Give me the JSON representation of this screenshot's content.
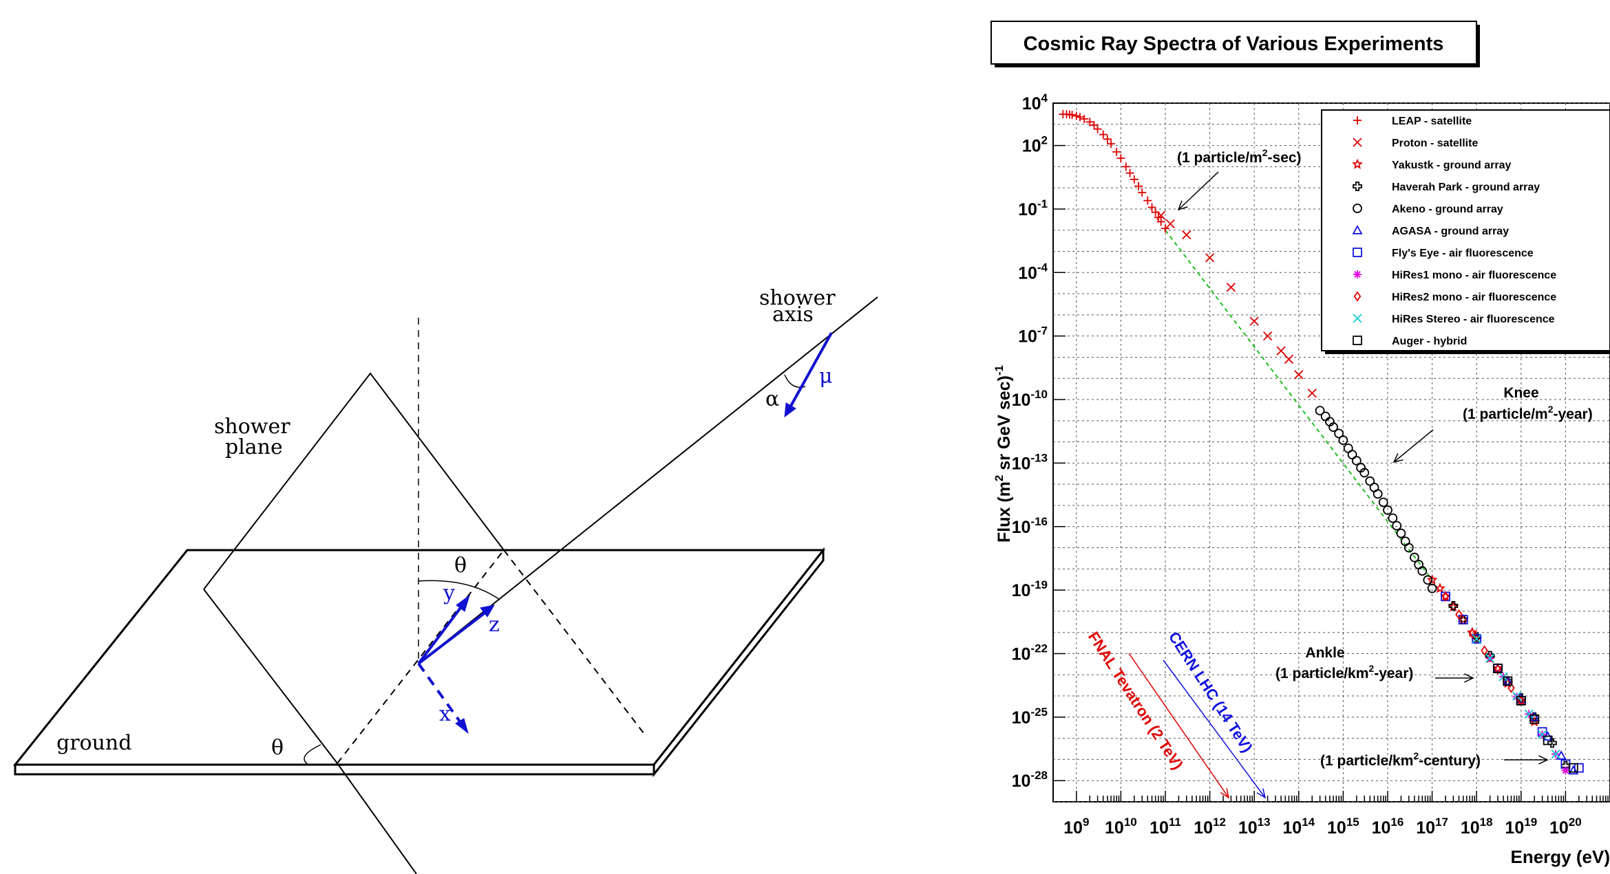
{
  "diagram": {
    "labels": {
      "shower_axis_1": "shower",
      "shower_axis_2": "axis",
      "shower_plane_1": "shower",
      "shower_plane_2": "plane",
      "ground": "ground",
      "theta_top": "θ",
      "theta_bottom": "θ",
      "alpha": "α",
      "mu": "μ",
      "x": "x",
      "y": "y",
      "z": "z"
    },
    "colors": {
      "vector": "#1010d0",
      "line": "#000000"
    }
  },
  "chart_data": {
    "type": "scatter",
    "title": "Cosmic Ray Spectra of Various Experiments",
    "xlabel": "Energy (eV)",
    "ylabel": "Flux (m² sr GeV sec)⁻¹",
    "xscale": "log",
    "yscale": "log",
    "xlim": [
      300000000.0,
      1e+21
    ],
    "ylim": [
      1e-29,
      10000.0
    ],
    "grid": true,
    "legend_position": "top-right",
    "x_ticks": [
      {
        "base": "10",
        "exp": "9"
      },
      {
        "base": "10",
        "exp": "10"
      },
      {
        "base": "10",
        "exp": "11"
      },
      {
        "base": "10",
        "exp": "12"
      },
      {
        "base": "10",
        "exp": "13"
      },
      {
        "base": "10",
        "exp": "14"
      },
      {
        "base": "10",
        "exp": "15"
      },
      {
        "base": "10",
        "exp": "16"
      },
      {
        "base": "10",
        "exp": "17"
      },
      {
        "base": "10",
        "exp": "18"
      },
      {
        "base": "10",
        "exp": "19"
      },
      {
        "base": "10",
        "exp": "20"
      }
    ],
    "y_ticks": [
      {
        "base": "10",
        "exp": "4"
      },
      {
        "base": "10",
        "exp": "2"
      },
      {
        "base": "10",
        "exp": "-1"
      },
      {
        "base": "10",
        "exp": "-4"
      },
      {
        "base": "10",
        "exp": "-7"
      },
      {
        "base": "10",
        "exp": "-10"
      },
      {
        "base": "10",
        "exp": "-13"
      },
      {
        "base": "10",
        "exp": "-16"
      },
      {
        "base": "10",
        "exp": "-19"
      },
      {
        "base": "10",
        "exp": "-22"
      },
      {
        "base": "10",
        "exp": "-25"
      },
      {
        "base": "10",
        "exp": "-28"
      }
    ],
    "series": [
      {
        "name": "LEAP - satellite",
        "marker": "plus",
        "color": "#e00000",
        "x": [
          500000000.0,
          600000000.0,
          700000000.0,
          800000000.0,
          1000000000.0,
          1200000000.0,
          1500000000.0,
          2000000000.0,
          2500000000.0,
          3000000000.0,
          4000000000.0,
          5000000000.0,
          6000000000.0,
          8000000000.0,
          10000000000.0,
          13000000000.0,
          16000000000.0,
          20000000000.0,
          25000000000.0,
          30000000000.0,
          40000000000.0,
          50000000000.0,
          60000000000.0,
          70000000000.0,
          80000000000.0,
          100000000000.0
        ],
        "y": [
          3000,
          3000,
          2900,
          2800,
          2500,
          2200,
          1800,
          1300,
          900,
          600,
          330,
          200,
          120,
          50,
          25,
          10,
          5,
          2.5,
          1.2,
          0.6,
          0.25,
          0.12,
          0.07,
          0.04,
          0.025,
          0.012
        ]
      },
      {
        "name": "Proton - satellite",
        "marker": "x",
        "color": "#e00000",
        "x": [
          80000000000.0,
          130000000000.0,
          300000000000.0,
          1000000000000.0,
          3000000000000.0,
          10000000000000.0,
          20000000000000.0,
          40000000000000.0,
          60000000000000.0,
          100000000000000.0,
          200000000000000.0
        ],
        "y": [
          0.05,
          0.02,
          0.006,
          0.0005,
          2e-05,
          5e-07,
          1e-07,
          2e-08,
          8e-09,
          1.5e-09,
          2e-10
        ]
      },
      {
        "name": "Yakustk - ground array",
        "marker": "star",
        "color": "#e00000",
        "x": [
          1e+17,
          1.5e+17,
          2e+17,
          3e+17,
          5e+17,
          8e+17,
          1e+18,
          2e+18,
          3e+18,
          5e+18,
          1e+19,
          2e+19
        ],
        "y": [
          3e-19,
          1.2e-19,
          5e-20,
          1.6e-20,
          4e-21,
          1e-21,
          5e-22,
          6e-23,
          2e-23,
          4e-24,
          6e-25,
          6e-26
        ]
      },
      {
        "name": "Haverah Park - ground array",
        "marker": "openplus",
        "color": "#000000",
        "x": [
          3e+17,
          5e+17,
          1e+18,
          2e+18,
          5e+18,
          1e+19,
          2e+19,
          5e+19,
          1e+20
        ],
        "y": [
          1.8e-20,
          4e-21,
          6e-22,
          8e-23,
          5e-24,
          8e-25,
          1e-25,
          6e-27,
          5e-28
        ]
      },
      {
        "name": "Akeno - ground array",
        "marker": "circle",
        "color": "#000000",
        "x": [
          300000000000000.0,
          400000000000000.0,
          500000000000000.0,
          600000000000000.0,
          800000000000000.0,
          1000000000000000.0,
          1300000000000000.0,
          1600000000000000.0,
          2000000000000000.0,
          2500000000000000.0,
          3000000000000000.0,
          4000000000000000.0,
          5000000000000000.0,
          6000000000000000.0,
          8000000000000000.0,
          1e+16,
          1.3e+16,
          1.6e+16,
          2e+16,
          2.5e+16,
          3e+16,
          4e+16,
          5e+16,
          6e+16,
          8e+16,
          1e+17
        ],
        "y": [
          3e-11,
          1.6e-11,
          9e-12,
          5e-12,
          2.5e-12,
          1.2e-12,
          5e-13,
          2.5e-13,
          1.3e-13,
          6e-14,
          3.5e-14,
          1.4e-14,
          7e-15,
          3.5e-15,
          1.4e-15,
          6e-16,
          2.5e-16,
          1.1e-16,
          4.8e-17,
          2e-17,
          1e-17,
          3.5e-18,
          1.6e-18,
          8e-19,
          3e-19,
          1.2e-19
        ]
      },
      {
        "name": "AGASA - ground array",
        "marker": "triangle",
        "color": "#1010e0",
        "x": [
          3e+18,
          5e+18,
          1e+19,
          2e+19,
          4e+19,
          8e+19,
          1.5e+20
        ],
        "y": [
          2e-23,
          5e-24,
          7e-25,
          1e-25,
          1.2e-26,
          1.5e-27,
          3e-28
        ]
      },
      {
        "name": "Fly's Eye - air fluorescence",
        "marker": "square",
        "color": "#1010e0",
        "x": [
          2e+17,
          5e+17,
          1e+18,
          3e+18,
          1e+19,
          3e+19,
          1e+20,
          2e+20
        ],
        "y": [
          5e-20,
          4e-21,
          5e-22,
          2e-23,
          6e-25,
          2e-26,
          6e-28,
          4e-28
        ]
      },
      {
        "name": "HiRes1 mono - air fluorescence",
        "marker": "asterisk",
        "color": "#e000e0",
        "x": [
          2e+18,
          4e+18,
          8e+18,
          1.5e+19,
          3e+19,
          6e+19,
          1e+20
        ],
        "y": [
          6e-23,
          8e-24,
          9e-25,
          1.4e-25,
          1.5e-26,
          1.8e-27,
          3e-28
        ]
      },
      {
        "name": "HiRes2 mono - air fluorescence",
        "marker": "diamond",
        "color": "#e00000",
        "x": [
          2e+17,
          4e+17,
          8e+17,
          1.5e+18,
          3e+18,
          6e+18,
          1e+19
        ],
        "y": [
          5e-20,
          7e-21,
          9e-22,
          1.4e-22,
          1.8e-23,
          2.4e-24,
          6e-25
        ]
      },
      {
        "name": "HiRes Stereo - air fluorescence",
        "marker": "x",
        "color": "#10d0d0",
        "x": [
          1e+18,
          2e+18,
          4e+18,
          8e+18,
          1.5e+19,
          3e+19,
          6e+19
        ],
        "y": [
          5e-22,
          6e-23,
          8e-24,
          1e-24,
          1.4e-25,
          1.5e-26,
          1.8e-27
        ]
      },
      {
        "name": "Auger - hybrid",
        "marker": "square",
        "color": "#000000",
        "x": [
          3e+18,
          5e+18,
          1e+19,
          2e+19,
          4e+19,
          1.5e+20
        ],
        "y": [
          2e-23,
          5e-24,
          6e-25,
          8e-26,
          8e-27,
          4e-28
        ]
      }
    ],
    "fit_line": {
      "color": "#20c020",
      "x": [
        100000000000.0,
        1e+17
      ],
      "y": [
        0.01,
        3e-19
      ]
    },
    "annotations": [
      {
        "text_pre": "(1 particle/m",
        "sup": "2",
        "text_post": "-sec)",
        "x": 100000000000.0,
        "y": 1
      },
      {
        "text_pre": "Knee",
        "sup": "",
        "text_post": "",
        "x": 3000000000000000.0,
        "y": 1e-13
      },
      {
        "text_pre": "(1 particle/m",
        "sup": "2",
        "text_post": "-year)",
        "x": 3000000000000000.0,
        "y": 1e-13
      },
      {
        "text_pre": "Ankle",
        "sup": "",
        "text_post": "",
        "x": 3e+18,
        "y": 1e-23
      },
      {
        "text_pre": "(1 particle/km",
        "sup": "2",
        "text_post": "-year)",
        "x": 3e+18,
        "y": 1e-23
      },
      {
        "text_pre": "(1 particle/km",
        "sup": "2",
        "text_post": "-century)",
        "x": 1e+20,
        "y": 1e-27
      }
    ],
    "accelerators": [
      {
        "label": "FNAL Tevatron (2 TeV)",
        "color": "#e00000",
        "x": 2000000000000000.0,
        "y": 1e-29
      },
      {
        "label": "CERN LHC (14 TeV)",
        "color": "#1010e0",
        "x": 1e+17,
        "y": 1e-29
      }
    ]
  }
}
